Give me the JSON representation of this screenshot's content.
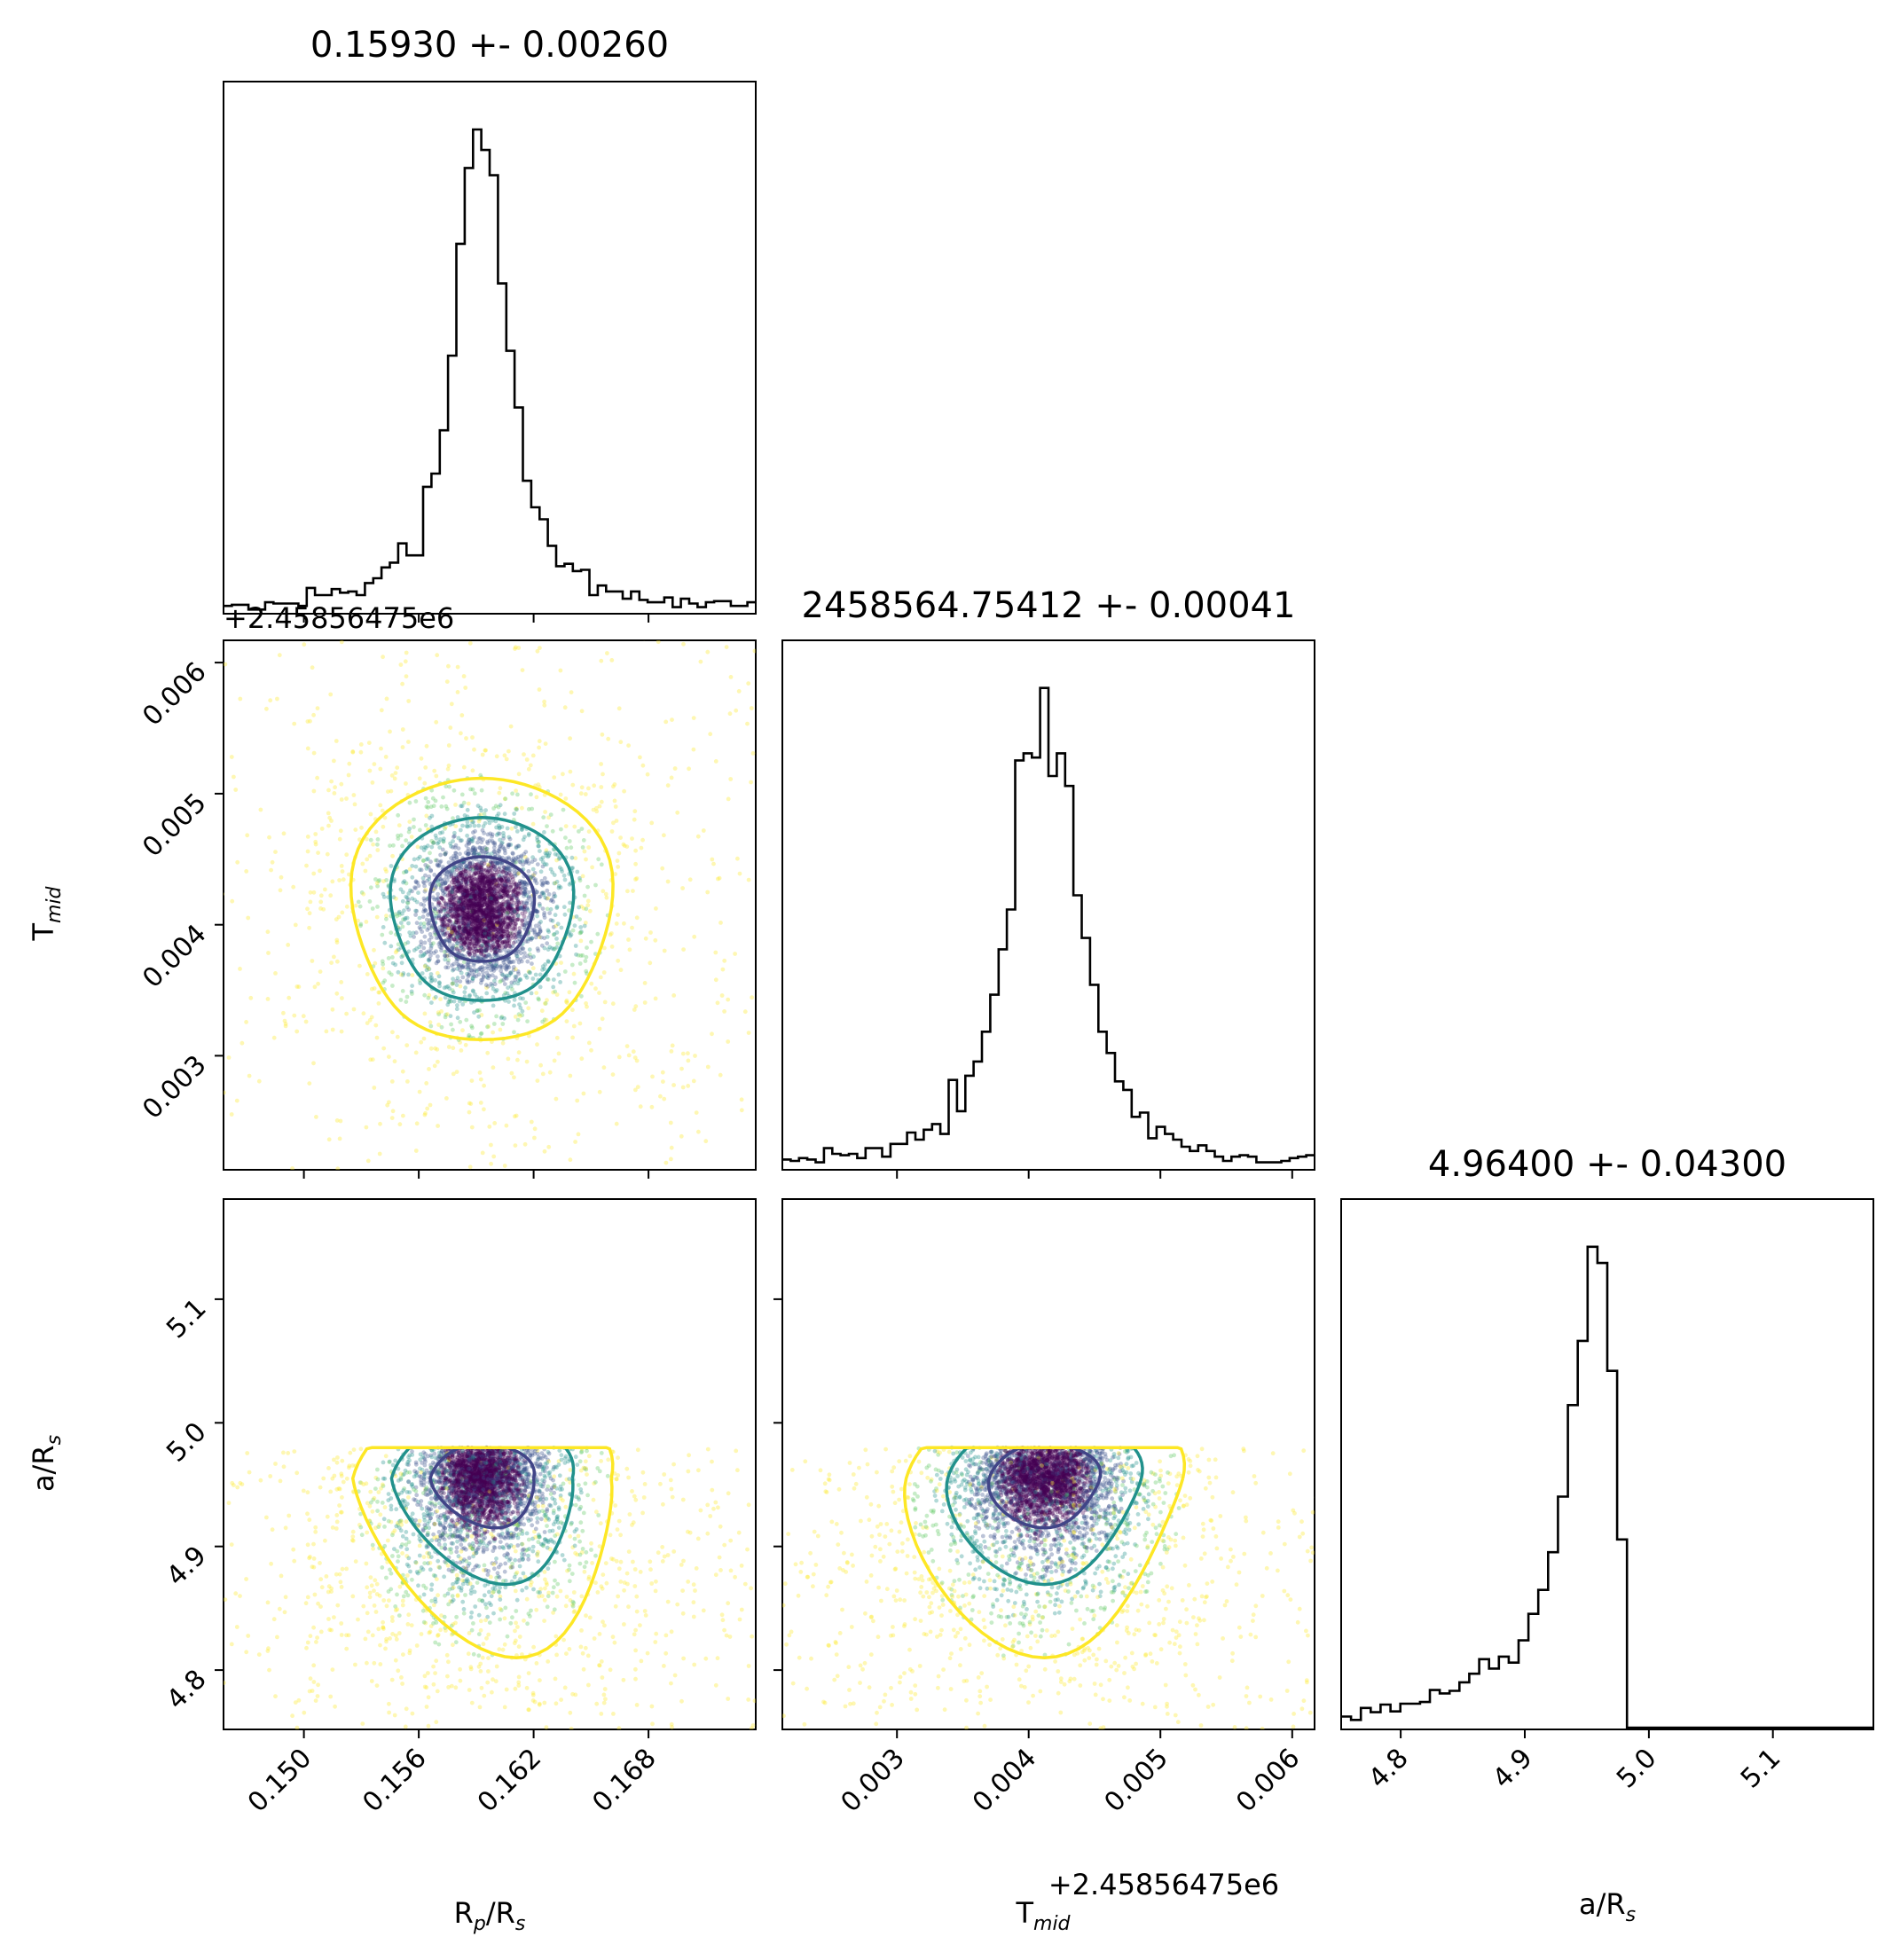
{
  "chart_data": {
    "type": "scatter",
    "subtype": "corner-plot",
    "parameters": [
      {
        "id": "rp",
        "axis_label": "R<sub>p</sub>/R<sub>s</sub>",
        "label_main": "R",
        "label_sub": "p",
        "label_rest": "/R",
        "label_sub2": "s",
        "range": [
          0.1458,
          0.1736
        ],
        "ticks": [
          0.15,
          0.156,
          0.162,
          0.168
        ],
        "tick_labels": [
          "0.150",
          "0.156",
          "0.162",
          "0.168"
        ],
        "median": 0.1593,
        "sigma": 0.0026,
        "title": "0.15930 +- 0.00260"
      },
      {
        "id": "tmid",
        "label_main": "T",
        "label_sub": "mid",
        "range": [
          0.00213,
          0.00617
        ],
        "ticks": [
          0.003,
          0.004,
          0.005,
          0.006
        ],
        "tick_labels": [
          "0.003",
          "0.004",
          "0.005",
          "0.006"
        ],
        "offset_text": "+2.45856475e6",
        "median": 0.00412,
        "sigma": 0.00041,
        "title": "2458564.75412 +- 0.00041"
      },
      {
        "id": "ars",
        "label_main": "a/R",
        "label_sub": "s",
        "range": [
          4.752,
          5.181
        ],
        "ticks": [
          4.8,
          4.9,
          5.0,
          5.1
        ],
        "tick_labels": [
          "4.8",
          "4.9",
          "5.0",
          "5.1"
        ],
        "median": 4.964,
        "sigma": 0.043,
        "upper_bound": 4.98,
        "title": "4.96400 +- 0.04300"
      }
    ],
    "histograms": {
      "rp": {
        "bins": 64,
        "peak_norm": 1.0
      },
      "tmid": {
        "bins": 64,
        "peak_norm": 1.0
      },
      "ars": {
        "bins": 54,
        "peak_norm": 1.0
      }
    },
    "contour_levels": [
      {
        "level": "1-sigma",
        "color": "#414487"
      },
      {
        "level": "2-sigma",
        "color": "#21918c"
      },
      {
        "level": "3-sigma",
        "color": "#fde725"
      }
    ],
    "colormap": [
      "#440154",
      "#3b528b",
      "#21918c",
      "#5ec962",
      "#fde725"
    ],
    "n_samples": 4200
  }
}
